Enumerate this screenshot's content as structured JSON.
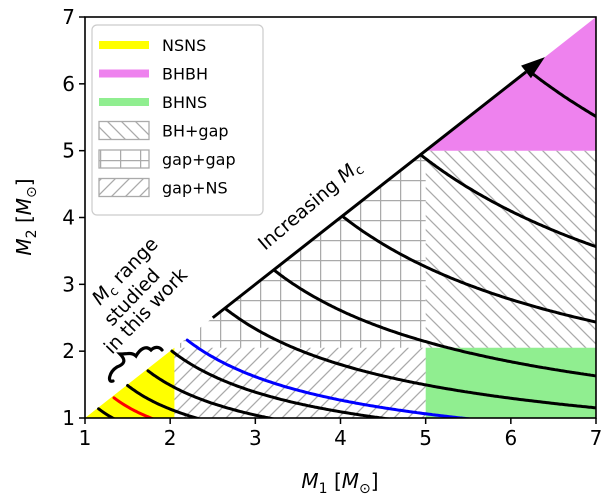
{
  "chart_data": {
    "type": "area",
    "title": "",
    "xlabel_main": "M",
    "xlabel_sub": "1",
    "xlabel_unit_open": " [",
    "xlabel_unit_main": "M",
    "xlabel_unit_sub": "⊙",
    "xlabel_unit_close": "]",
    "ylabel_main": "M",
    "ylabel_sub": "2",
    "ylabel_unit_open": " [",
    "ylabel_unit_main": "M",
    "ylabel_unit_sub": "⊙",
    "ylabel_unit_close": "]",
    "xlim": [
      1,
      7
    ],
    "ylim": [
      1,
      7
    ],
    "x_ticks": [
      "1",
      "2",
      "3",
      "4",
      "5",
      "6",
      "7"
    ],
    "y_ticks": [
      "1",
      "2",
      "3",
      "4",
      "5",
      "6",
      "7"
    ],
    "grid": false,
    "legend_position": "top-left",
    "legend": [
      {
        "label": "NSNS",
        "kind": "fill",
        "color": "#ffff00"
      },
      {
        "label": "BHBH",
        "kind": "fill",
        "color": "#ee82ee"
      },
      {
        "label": "BHNS",
        "kind": "fill",
        "color": "#90ee90"
      },
      {
        "label": "BH+gap",
        "kind": "hatch-back",
        "color": "#aaaaaa"
      },
      {
        "label": "gap+gap",
        "kind": "hatch-grid",
        "color": "#aaaaaa"
      },
      {
        "label": "gap+NS",
        "kind": "hatch-fwd",
        "color": "#aaaaaa"
      }
    ],
    "regions": [
      {
        "name": "NSNS",
        "polygon": [
          [
            1,
            1
          ],
          [
            2.05,
            1
          ],
          [
            2.05,
            2.05
          ]
        ],
        "color": "#ffff00"
      },
      {
        "name": "BHBH",
        "polygon": [
          [
            5,
            5
          ],
          [
            7,
            5
          ],
          [
            7,
            7
          ]
        ],
        "color": "#ee82ee"
      },
      {
        "name": "BHNS",
        "polygon": [
          [
            5,
            1
          ],
          [
            7,
            1
          ],
          [
            7,
            2.05
          ],
          [
            5,
            2.05
          ]
        ],
        "color": "#90ee90"
      },
      {
        "name": "BH+gap",
        "polygon": [
          [
            5,
            2.05
          ],
          [
            7,
            2.05
          ],
          [
            7,
            5
          ],
          [
            5,
            5
          ]
        ],
        "hatch": "back"
      },
      {
        "name": "gap+gap",
        "polygon": [
          [
            2.05,
            2.05
          ],
          [
            5,
            2.05
          ],
          [
            5,
            5
          ]
        ],
        "hatch": "grid"
      },
      {
        "name": "gap+NS",
        "polygon": [
          [
            2.05,
            1
          ],
          [
            5,
            1
          ],
          [
            5,
            2.05
          ],
          [
            2.05,
            2.05
          ]
        ],
        "hatch": "fwd"
      }
    ],
    "chirp_mass_curves": [
      {
        "mc": 1.0,
        "color": "#000000"
      },
      {
        "mc": 1.15,
        "color": "#ff0000"
      },
      {
        "mc": 1.3,
        "color": "#000000"
      },
      {
        "mc": 1.5,
        "color": "#000000"
      },
      {
        "mc": 1.75,
        "color": "#000000"
      },
      {
        "mc": 1.9,
        "color": "#0000ff"
      },
      {
        "mc": 2.3,
        "color": "#000000"
      },
      {
        "mc": 2.8,
        "color": "#000000"
      },
      {
        "mc": 3.5,
        "color": "#000000"
      },
      {
        "mc": 4.3,
        "color": "#000000"
      },
      {
        "mc": 5.4,
        "color": "#000000"
      }
    ],
    "arrow": {
      "from": [
        2.5,
        2.5
      ],
      "to": [
        6.4,
        6.4
      ],
      "label_main": "Increasing ",
      "label_math": "M",
      "label_sub": "c"
    },
    "brace_annotation": {
      "line1_main": "M",
      "line1_sub": "c",
      "line1_rest": " range",
      "line2": "studied",
      "line3": "in this work"
    }
  }
}
